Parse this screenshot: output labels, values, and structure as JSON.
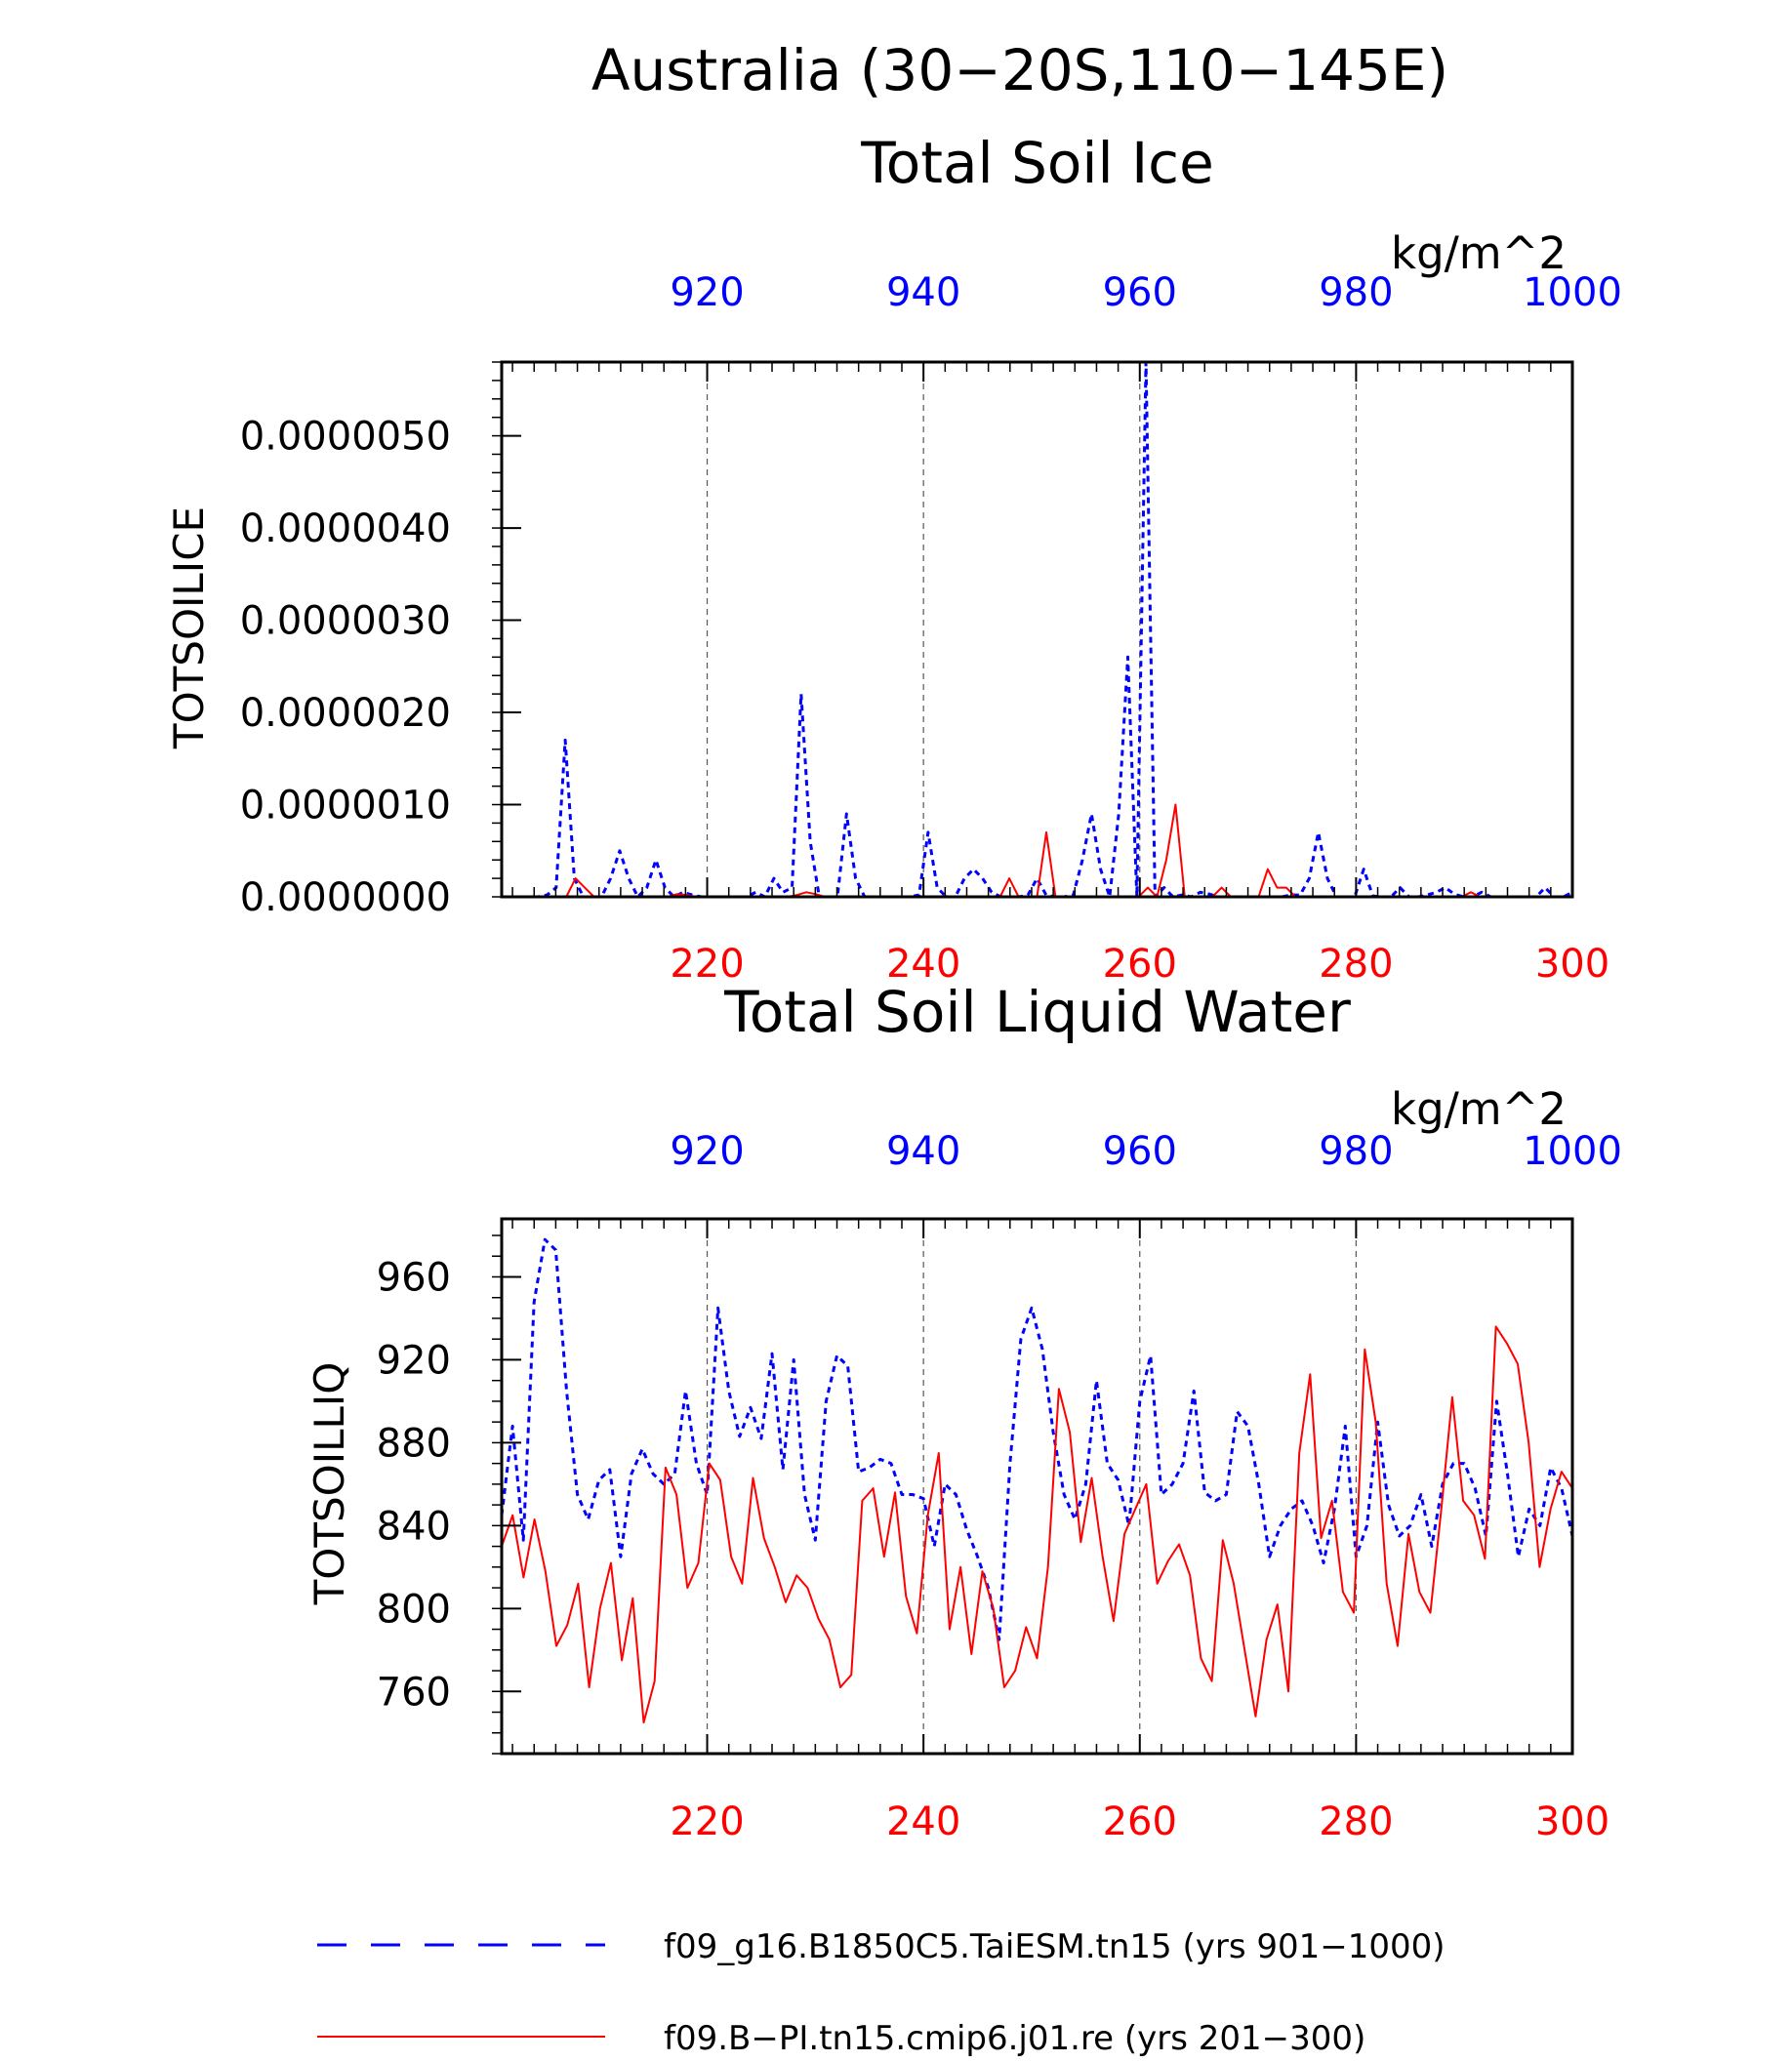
{
  "title": "Australia (30−20S,110−145E)",
  "colors": {
    "blue": "#0000ff",
    "red": "#ff0000",
    "axis": "#000000",
    "grid": "#555555"
  },
  "chart_data": [
    {
      "type": "line",
      "title": "Total Soil Ice",
      "ylabel": "TOTSOILICE",
      "units": "kg/m^2",
      "ylim": [
        0,
        5.8e-06
      ],
      "y_ticks": [
        "0.0000000",
        "0.0000010",
        "0.0000020",
        "0.0000030",
        "0.0000040",
        "0.0000050"
      ],
      "y_tick_values": [
        0,
        1e-06,
        2e-06,
        3e-06,
        4e-06,
        5e-06
      ],
      "y_minor_step": 2e-07,
      "top_axis": {
        "range": [
          901,
          1000
        ],
        "ticks": [
          "920",
          "940",
          "960",
          "980",
          "1000"
        ],
        "tick_values": [
          920,
          940,
          960,
          980,
          1000
        ]
      },
      "bottom_axis": {
        "range": [
          201,
          300
        ],
        "ticks": [
          "220",
          "240",
          "260",
          "280",
          "300"
        ],
        "tick_values": [
          220,
          240,
          260,
          280,
          300
        ]
      },
      "grid_x": [
        220,
        240,
        260,
        280
      ],
      "series": [
        {
          "name": "f09_g16.B1850C5.TaiESM.tn15 (yrs 901−1000)",
          "color": "#0000ff",
          "style": "dashed",
          "axis": "top",
          "values": [
            0,
            0,
            0,
            0,
            0,
            2e-08,
            1e-07,
            1.7e-06,
            2e-07,
            0,
            0,
            0,
            2e-07,
            5e-07,
            2e-07,
            0,
            1e-07,
            4e-07,
            1e-07,
            0,
            5e-08,
            2e-08,
            0,
            0,
            0,
            0,
            0,
            0,
            5e-08,
            0,
            2e-07,
            5e-08,
            1e-07,
            2.2e-06,
            6e-07,
            0,
            0,
            0,
            9e-07,
            2e-07,
            0,
            0,
            0,
            0,
            0,
            0,
            2e-08,
            7e-07,
            1e-07,
            0,
            0,
            2e-07,
            3e-07,
            2e-07,
            5e-08,
            0,
            0,
            0,
            2e-08,
            2e-07,
            2e-08,
            0,
            0,
            2e-08,
            4e-07,
            9e-07,
            3e-07,
            0,
            9e-07,
            2.6e-06,
            0,
            5.9e-06,
            0,
            1e-07,
            0,
            2e-08,
            0,
            5e-08,
            3e-08,
            0,
            0,
            0,
            0,
            0,
            0,
            0,
            0,
            2e-08,
            2e-08,
            2e-07,
            7e-07,
            2e-07,
            0,
            0,
            0,
            3e-07,
            1e-08,
            0,
            0,
            1e-07,
            0,
            0,
            2e-08,
            5e-08,
            1e-07,
            3e-08,
            0,
            0,
            5e-08,
            0,
            0,
            0,
            0,
            0,
            0,
            1e-07,
            0,
            0,
            5e-08
          ]
        },
        {
          "name": "f09.B−PI.tn15.cmip6.j01.re (yrs 201−300)",
          "color": "#ff0000",
          "style": "solid",
          "axis": "bottom",
          "values": [
            0,
            0,
            0,
            0,
            0,
            0,
            0,
            0,
            2e-07,
            1e-07,
            0,
            0,
            0,
            0,
            0,
            0,
            0,
            0,
            0,
            3e-08,
            2e-08,
            0,
            0,
            0,
            0,
            0,
            0,
            0,
            0,
            0,
            0,
            0,
            2e-08,
            5e-08,
            3e-08,
            0,
            0,
            0,
            0,
            0,
            0,
            0,
            0,
            0,
            0,
            0,
            0,
            0,
            1e-08,
            0,
            0,
            0,
            0,
            0,
            0,
            2e-07,
            0,
            0,
            0,
            7e-07,
            0,
            0,
            0,
            0,
            0,
            0,
            0,
            0,
            0,
            0,
            1e-07,
            0,
            4e-07,
            1e-06,
            0,
            0,
            0,
            0,
            1e-07,
            0,
            0,
            0,
            0,
            3e-07,
            1e-07,
            1e-07,
            0,
            0,
            0,
            0,
            0,
            0,
            0,
            0,
            0,
            0,
            0,
            0,
            0,
            0,
            0,
            0,
            0,
            0,
            0,
            5e-08,
            0,
            0,
            0,
            0,
            0,
            0,
            0,
            0,
            0,
            0,
            0
          ]
        }
      ]
    },
    {
      "type": "line",
      "title": "Total Soil Liquid Water",
      "ylabel": "TOTSOILLIQ",
      "units": "kg/m^2",
      "ylim": [
        730,
        988
      ],
      "y_ticks": [
        "760",
        "800",
        "840",
        "880",
        "920",
        "960"
      ],
      "y_tick_values": [
        760,
        800,
        840,
        880,
        920,
        960
      ],
      "y_minor_step": 10,
      "top_axis": {
        "range": [
          901,
          1000
        ],
        "ticks": [
          "920",
          "940",
          "960",
          "980",
          "1000"
        ],
        "tick_values": [
          920,
          940,
          960,
          980,
          1000
        ]
      },
      "bottom_axis": {
        "range": [
          201,
          300
        ],
        "ticks": [
          "220",
          "240",
          "260",
          "280",
          "300"
        ],
        "tick_values": [
          220,
          240,
          260,
          280,
          300
        ]
      },
      "grid_x": [
        220,
        240,
        260,
        280
      ],
      "series": [
        {
          "name": "f09_g16.B1850C5.TaiESM.tn15 (yrs 901−1000)",
          "color": "#0000ff",
          "style": "dashed",
          "axis": "top",
          "values": [
            845,
            888,
            833,
            948,
            978,
            973,
            905,
            855,
            843,
            862,
            867,
            825,
            865,
            877,
            865,
            860,
            865,
            905,
            870,
            855,
            945,
            905,
            883,
            897,
            882,
            923,
            867,
            920,
            855,
            833,
            900,
            922,
            917,
            866,
            868,
            872,
            870,
            855,
            855,
            853,
            830,
            860,
            855,
            838,
            825,
            810,
            785,
            870,
            930,
            945,
            925,
            885,
            855,
            843,
            860,
            910,
            870,
            862,
            840,
            900,
            922,
            855,
            860,
            870,
            905,
            856,
            852,
            855,
            895,
            888,
            860,
            825,
            840,
            848,
            852,
            840,
            822,
            848,
            888,
            825,
            840,
            890,
            850,
            835,
            840,
            855,
            830,
            860,
            870,
            870,
            858,
            835,
            900,
            865,
            825,
            848,
            840,
            868,
            858,
            835
          ]
        },
        {
          "name": "f09.B−PI.tn15.cmip6.j01.re (yrs 201−300)",
          "color": "#ff0000",
          "style": "solid",
          "axis": "bottom",
          "values": [
            830,
            845,
            815,
            843,
            818,
            782,
            792,
            812,
            762,
            800,
            822,
            775,
            805,
            745,
            765,
            868,
            855,
            810,
            822,
            870,
            862,
            825,
            812,
            863,
            834,
            820,
            803,
            816,
            810,
            795,
            785,
            762,
            768,
            852,
            858,
            825,
            856,
            806,
            788,
            845,
            875,
            790,
            820,
            778,
            818,
            800,
            762,
            770,
            791,
            776,
            820,
            906,
            885,
            832,
            863,
            825,
            794,
            836,
            848,
            860,
            812,
            823,
            831,
            816,
            776,
            765,
            833,
            812,
            780,
            748,
            785,
            802,
            760,
            875,
            913,
            834,
            852,
            808,
            798,
            925,
            890,
            812,
            782,
            836,
            808,
            798,
            848,
            902,
            852,
            845,
            824,
            936,
            928,
            918,
            880,
            820,
            848,
            866,
            858
          ]
        }
      ]
    }
  ],
  "legend": {
    "placement": "bottom",
    "entries": [
      {
        "label": "f09_g16.B1850C5.TaiESM.tn15 (yrs 901−1000)",
        "color": "#0000ff",
        "style": "dashed"
      },
      {
        "label": "f09.B−PI.tn15.cmip6.j01.re (yrs 201−300)",
        "color": "#ff0000",
        "style": "solid"
      }
    ]
  }
}
